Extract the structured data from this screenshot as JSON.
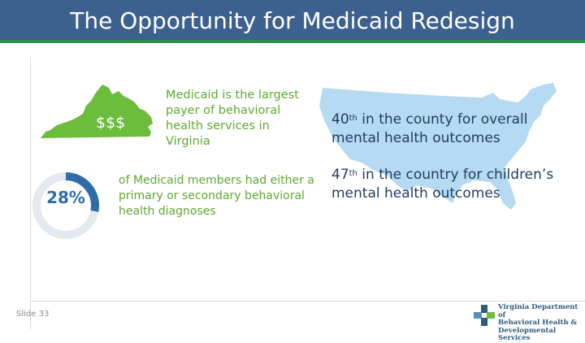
{
  "slide": {
    "title": "The Opportunity for Medicaid Redesign",
    "number_label": "Slide 33"
  },
  "stats": {
    "payer_symbol": "$$$",
    "payer_text": "Medicaid is the largest payer of behavioral health services in Virginia",
    "members_percent": "28%",
    "members_fraction": 0.28,
    "members_text": "of Medicaid members had either a primary or secondary behavioral health diagnoses",
    "county_rank": "40",
    "county_rank_suffix": "th",
    "county_text": " in the county for overall mental health outcomes",
    "country_rank": "47",
    "country_rank_suffix": "th",
    "country_text": " in the country for children’s mental health outcomes"
  },
  "logo": {
    "line1": "Virginia Department of",
    "line2": "Behavioral Health &",
    "line3": "Developmental Services"
  },
  "colors": {
    "title_bar": "#3d618f",
    "accent_green": "#6cbd3c",
    "map_blue": "#b5daf1",
    "ring_blue": "#2e6ea6",
    "dark_text": "#1f3d5e"
  }
}
